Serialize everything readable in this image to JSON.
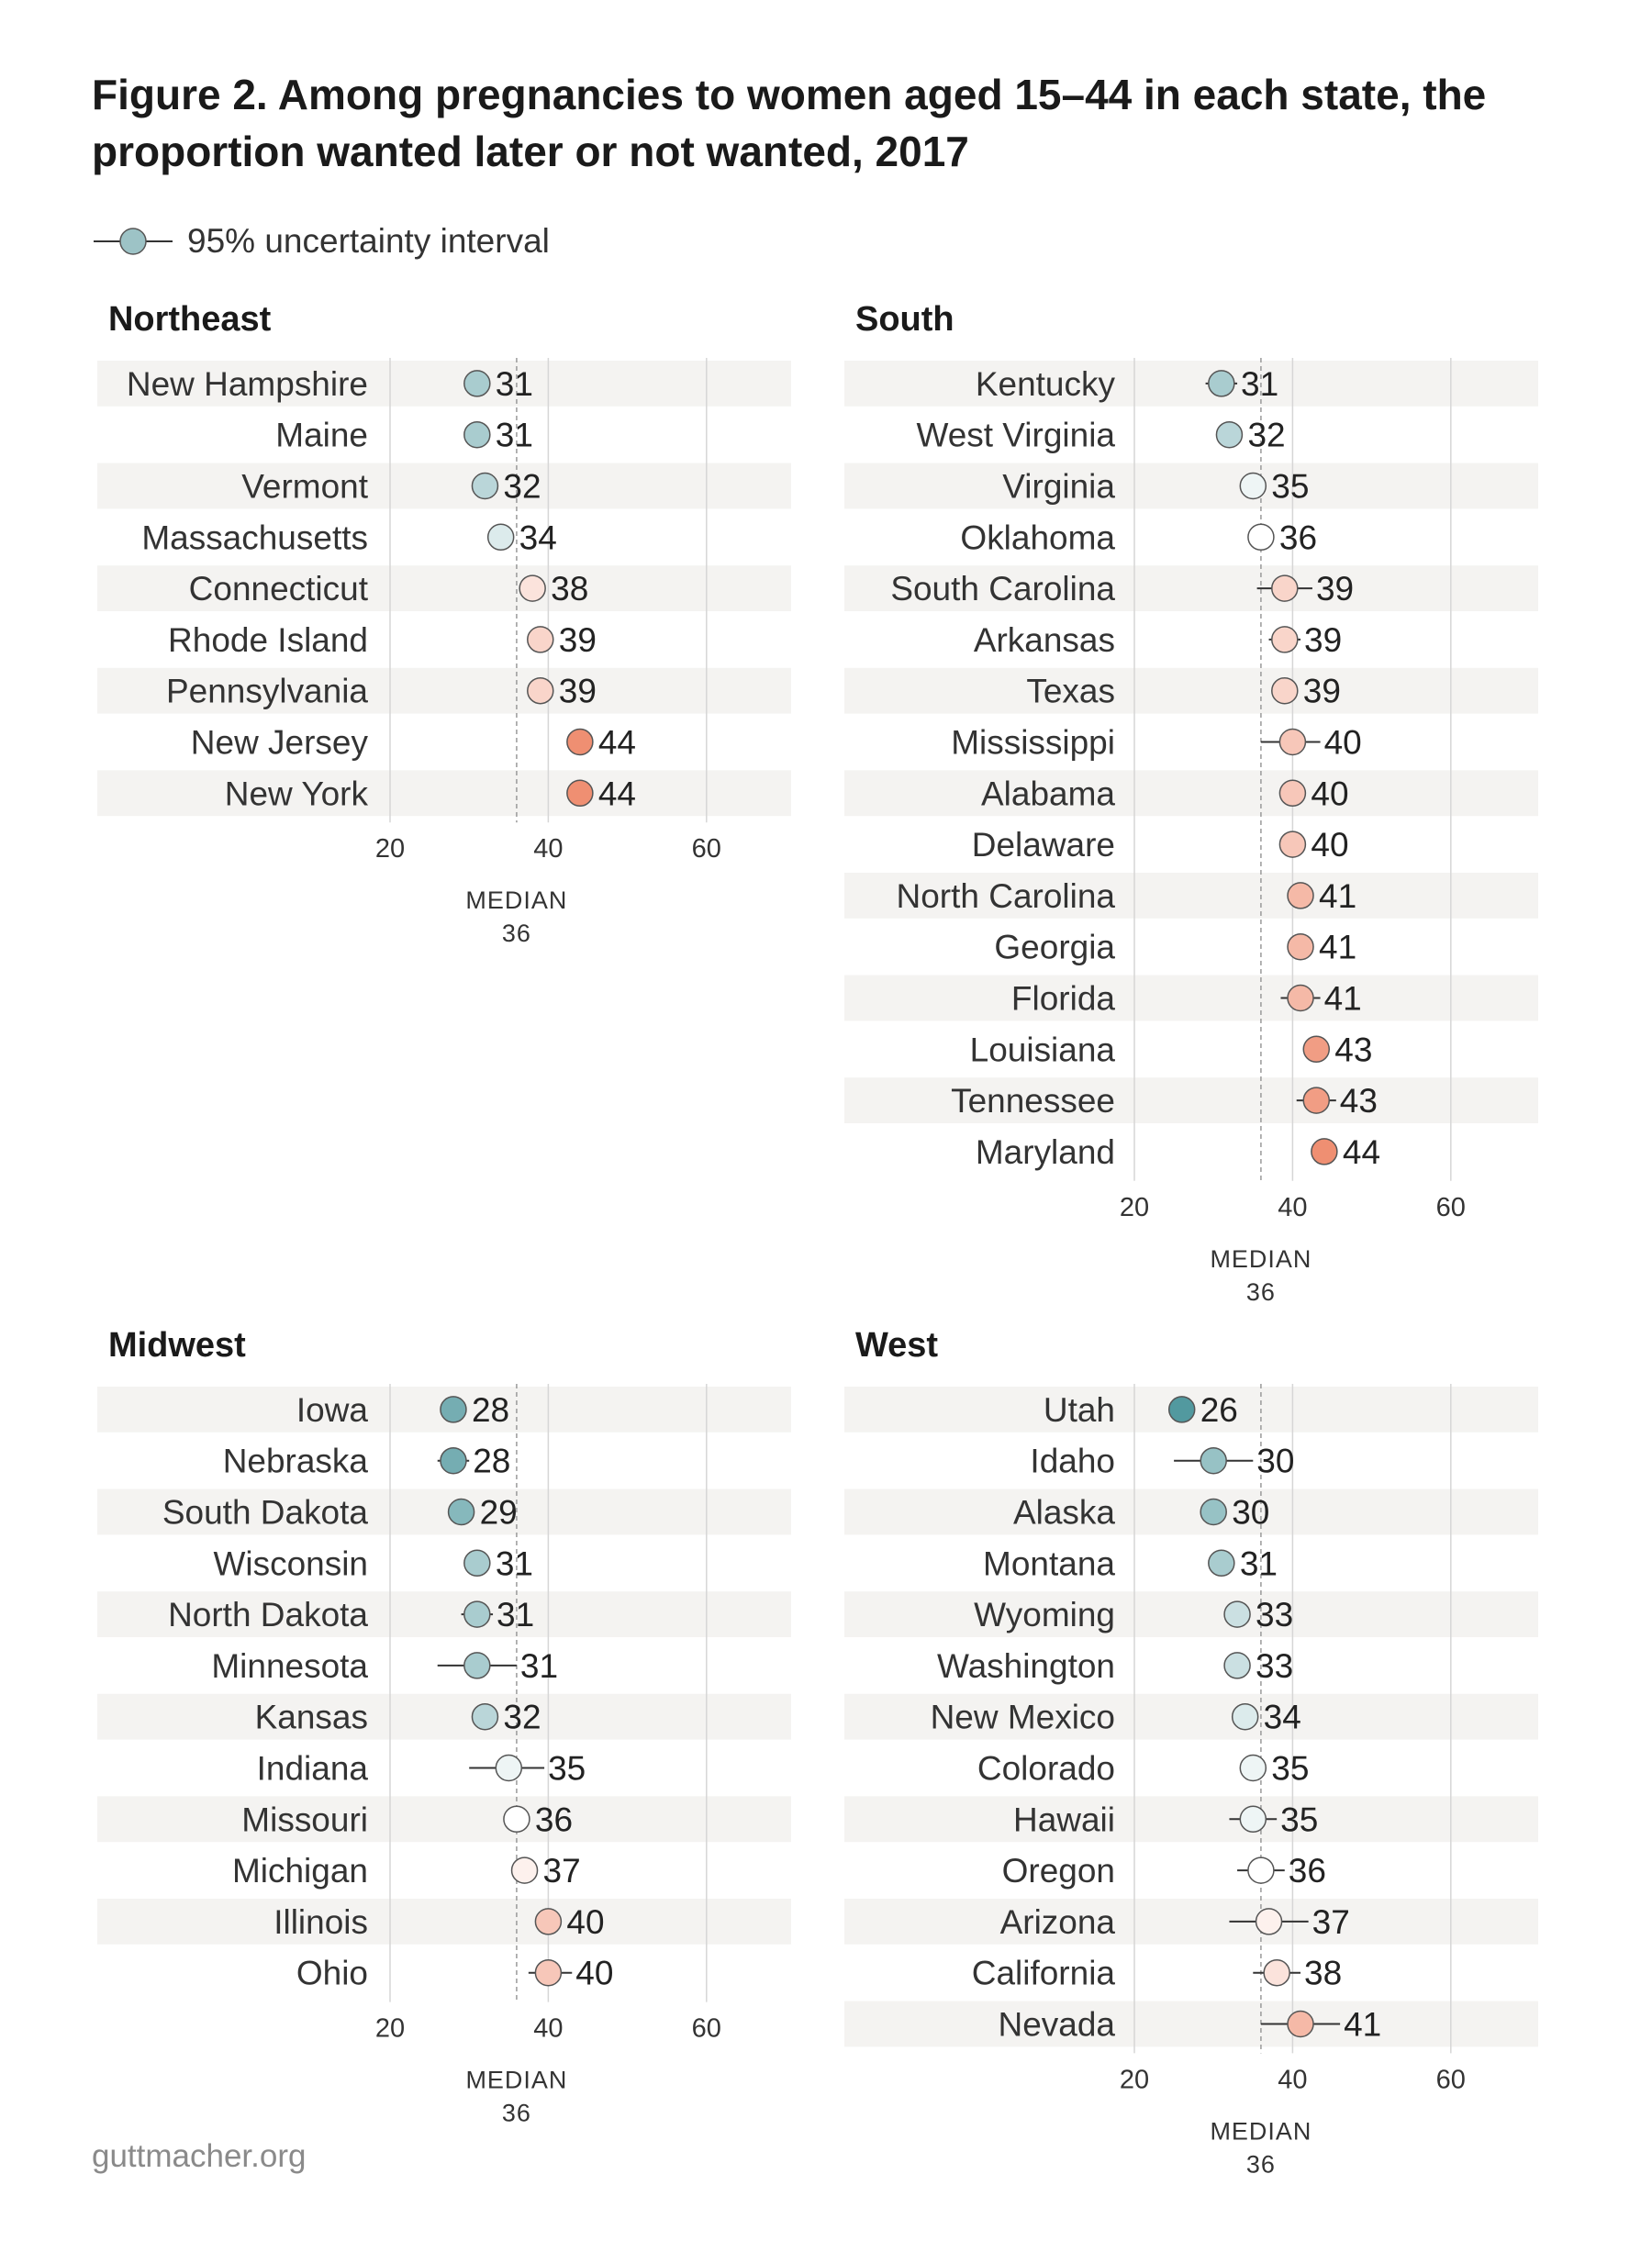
{
  "title_lines": [
    "Figure 2. Among pregnancies to women aged 15–44 in each state, the",
    "proportion wanted later or not wanted, 2017"
  ],
  "legend": {
    "label": "95% uncertainty interval",
    "marker_color": "#9dc3c6"
  },
  "source": "guttmacher.org",
  "colors": {
    "low": "#52999f",
    "mid": "#ffffff",
    "high": "#ef8f72",
    "stripe": "#f4f3f1",
    "gridline": "#d6d6d6",
    "median_line": "#9a9a9a",
    "marker_stroke": "#555555",
    "interval_line": "#333333"
  },
  "chart_data": [
    {
      "type": "dot-interval",
      "region": "Northeast",
      "x_range": [
        20,
        60
      ],
      "x_ticks": [
        20,
        40,
        60
      ],
      "median": 36,
      "median_label": "MEDIAN",
      "rows": [
        {
          "state": "New Hampshire",
          "value": 31,
          "low": 30,
          "high": 32
        },
        {
          "state": "Maine",
          "value": 31,
          "low": 30.5,
          "high": 31.5
        },
        {
          "state": "Vermont",
          "value": 32,
          "low": 31.5,
          "high": 32.5
        },
        {
          "state": "Massachusetts",
          "value": 34,
          "low": 33.5,
          "high": 34.5
        },
        {
          "state": "Connecticut",
          "value": 38,
          "low": 37.5,
          "high": 38.5
        },
        {
          "state": "Rhode Island",
          "value": 39,
          "low": 38.5,
          "high": 39.5
        },
        {
          "state": "Pennsylvania",
          "value": 39,
          "low": 38.5,
          "high": 39.5
        },
        {
          "state": "New Jersey",
          "value": 44,
          "low": 43.5,
          "high": 44.5
        },
        {
          "state": "New York",
          "value": 44,
          "low": 43.5,
          "high": 44.5
        }
      ]
    },
    {
      "type": "dot-interval",
      "region": "South",
      "x_range": [
        20,
        60
      ],
      "x_ticks": [
        20,
        40,
        60
      ],
      "median": 36,
      "median_label": "MEDIAN",
      "rows": [
        {
          "state": "Kentucky",
          "value": 31,
          "low": 29,
          "high": 33
        },
        {
          "state": "West Virginia",
          "value": 32,
          "low": 31.5,
          "high": 32.5
        },
        {
          "state": "Virginia",
          "value": 35,
          "low": 34,
          "high": 36
        },
        {
          "state": "Oklahoma",
          "value": 36,
          "low": 35.5,
          "high": 36.5
        },
        {
          "state": "South Carolina",
          "value": 39,
          "low": 35.5,
          "high": 42.5
        },
        {
          "state": "Arkansas",
          "value": 39,
          "low": 37,
          "high": 41
        },
        {
          "state": "Texas",
          "value": 39,
          "low": 37.5,
          "high": 40.5
        },
        {
          "state": "Mississippi",
          "value": 40,
          "low": 36,
          "high": 43.5
        },
        {
          "state": "Alabama",
          "value": 40,
          "low": 39.5,
          "high": 40.5
        },
        {
          "state": "Delaware",
          "value": 40,
          "low": 39.5,
          "high": 40.5
        },
        {
          "state": "North Carolina",
          "value": 41,
          "low": 40,
          "high": 42
        },
        {
          "state": "Georgia",
          "value": 41,
          "low": 40,
          "high": 42
        },
        {
          "state": "Florida",
          "value": 41,
          "low": 38.5,
          "high": 43.5
        },
        {
          "state": "Louisiana",
          "value": 43,
          "low": 42.5,
          "high": 43.5
        },
        {
          "state": "Tennessee",
          "value": 43,
          "low": 40.5,
          "high": 45.5
        },
        {
          "state": "Maryland",
          "value": 44,
          "low": 43.5,
          "high": 44.5
        }
      ]
    },
    {
      "type": "dot-interval",
      "region": "Midwest",
      "x_range": [
        20,
        60
      ],
      "x_ticks": [
        20,
        40,
        60
      ],
      "median": 36,
      "median_label": "MEDIAN",
      "rows": [
        {
          "state": "Iowa",
          "value": 28,
          "low": 27,
          "high": 29
        },
        {
          "state": "Nebraska",
          "value": 28,
          "low": 26,
          "high": 30
        },
        {
          "state": "South Dakota",
          "value": 29,
          "low": 28.5,
          "high": 29.5
        },
        {
          "state": "Wisconsin",
          "value": 31,
          "low": 30.5,
          "high": 31.5
        },
        {
          "state": "North Dakota",
          "value": 31,
          "low": 29,
          "high": 33
        },
        {
          "state": "Minnesota",
          "value": 31,
          "low": 26,
          "high": 36
        },
        {
          "state": "Kansas",
          "value": 32,
          "low": 31,
          "high": 33
        },
        {
          "state": "Indiana",
          "value": 35,
          "low": 30,
          "high": 39.5
        },
        {
          "state": "Missouri",
          "value": 36,
          "low": 35.5,
          "high": 36.5
        },
        {
          "state": "Michigan",
          "value": 37,
          "low": 36.5,
          "high": 37.5
        },
        {
          "state": "Illinois",
          "value": 40,
          "low": 39.5,
          "high": 40.5
        },
        {
          "state": "Ohio",
          "value": 40,
          "low": 37.5,
          "high": 43
        }
      ]
    },
    {
      "type": "dot-interval",
      "region": "West",
      "x_range": [
        20,
        60
      ],
      "x_ticks": [
        20,
        40,
        60
      ],
      "median": 36,
      "median_label": "MEDIAN",
      "rows": [
        {
          "state": "Utah",
          "value": 26,
          "low": 25.5,
          "high": 26.5
        },
        {
          "state": "Idaho",
          "value": 30,
          "low": 25,
          "high": 35
        },
        {
          "state": "Alaska",
          "value": 30,
          "low": 29.5,
          "high": 30.5
        },
        {
          "state": "Montana",
          "value": 31,
          "low": 30.5,
          "high": 31.5
        },
        {
          "state": "Wyoming",
          "value": 33,
          "low": 31.5,
          "high": 34.5
        },
        {
          "state": "Washington",
          "value": 33,
          "low": 32.5,
          "high": 33.5
        },
        {
          "state": "New Mexico",
          "value": 34,
          "low": 33,
          "high": 35
        },
        {
          "state": "Colorado",
          "value": 35,
          "low": 34.5,
          "high": 35.5
        },
        {
          "state": "Hawaii",
          "value": 35,
          "low": 32,
          "high": 38
        },
        {
          "state": "Oregon",
          "value": 36,
          "low": 33,
          "high": 39
        },
        {
          "state": "Arizona",
          "value": 37,
          "low": 32,
          "high": 42
        },
        {
          "state": "California",
          "value": 38,
          "low": 35,
          "high": 41
        },
        {
          "state": "Nevada",
          "value": 41,
          "low": 36,
          "high": 46
        }
      ]
    }
  ]
}
